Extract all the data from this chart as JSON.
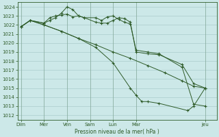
{
  "background_color": "#cce8e8",
  "grid_color": "#aacccc",
  "line_color": "#2d5a27",
  "xlabel": "Pression niveau de la mer( hPa )",
  "ylim": [
    1011.5,
    1024.5
  ],
  "yticks": [
    1012,
    1013,
    1014,
    1015,
    1016,
    1017,
    1018,
    1019,
    1020,
    1021,
    1022,
    1023,
    1024
  ],
  "major_xtick_positions": [
    0,
    2,
    4,
    6,
    8,
    10,
    16
  ],
  "major_xtick_labels": [
    "Dim",
    "Mer",
    "Ven",
    "Sam",
    "Lun",
    "Mar",
    "Jeu"
  ],
  "xlim": [
    -0.3,
    17.0
  ],
  "figsize": [
    3.2,
    2.0
  ],
  "dpi": 100,
  "series1_x": [
    0,
    0.8,
    2.0,
    2.5,
    3.0,
    3.5,
    4.0,
    4.5,
    5.0,
    5.5,
    6.5,
    7.0,
    7.5,
    8.0,
    8.5,
    9.0,
    9.5,
    10.0,
    11.0,
    12.0,
    14.0,
    15.0,
    16.0
  ],
  "series1_y": [
    1021.8,
    1022.5,
    1022.2,
    1022.8,
    1023.0,
    1023.1,
    1023.2,
    1022.9,
    1023.0,
    1022.8,
    1022.3,
    1022.2,
    1022.2,
    1022.5,
    1022.8,
    1022.7,
    1022.3,
    1019.0,
    1018.8,
    1018.7,
    1017.6,
    1015.5,
    1015.0
  ],
  "series2_x": [
    0,
    0.8,
    2.0,
    2.5,
    3.0,
    3.5,
    4.0,
    4.5,
    5.0,
    5.5,
    6.5,
    7.0,
    7.5,
    8.0,
    8.5,
    9.0,
    9.5,
    10.0,
    11.0,
    12.0,
    14.0,
    15.0,
    16.0
  ],
  "series2_y": [
    1021.8,
    1022.5,
    1022.2,
    1022.5,
    1022.8,
    1023.3,
    1024.0,
    1023.7,
    1023.0,
    1022.8,
    1022.8,
    1022.5,
    1022.9,
    1023.0,
    1022.6,
    1022.3,
    1022.1,
    1019.2,
    1019.0,
    1018.8,
    1017.3,
    1013.2,
    1013.0
  ],
  "series3_x": [
    0,
    0.8,
    2.0,
    3.5,
    5.0,
    6.5,
    8.0,
    9.5,
    11.0,
    12.5,
    14.0,
    15.0,
    16.0
  ],
  "series3_y": [
    1021.8,
    1022.5,
    1022.0,
    1021.3,
    1020.5,
    1019.8,
    1019.0,
    1018.3,
    1017.5,
    1016.7,
    1015.8,
    1015.2,
    1015.0
  ],
  "series4_x": [
    0,
    0.8,
    2.0,
    3.5,
    5.0,
    6.5,
    8.0,
    9.5,
    10.0,
    10.5,
    11.0,
    12.0,
    14.5,
    15.0,
    16.0
  ],
  "series4_y": [
    1021.8,
    1022.5,
    1022.0,
    1021.3,
    1020.5,
    1019.5,
    1017.8,
    1015.0,
    1014.2,
    1013.5,
    1013.5,
    1013.3,
    1012.5,
    1013.0,
    1015.0
  ]
}
